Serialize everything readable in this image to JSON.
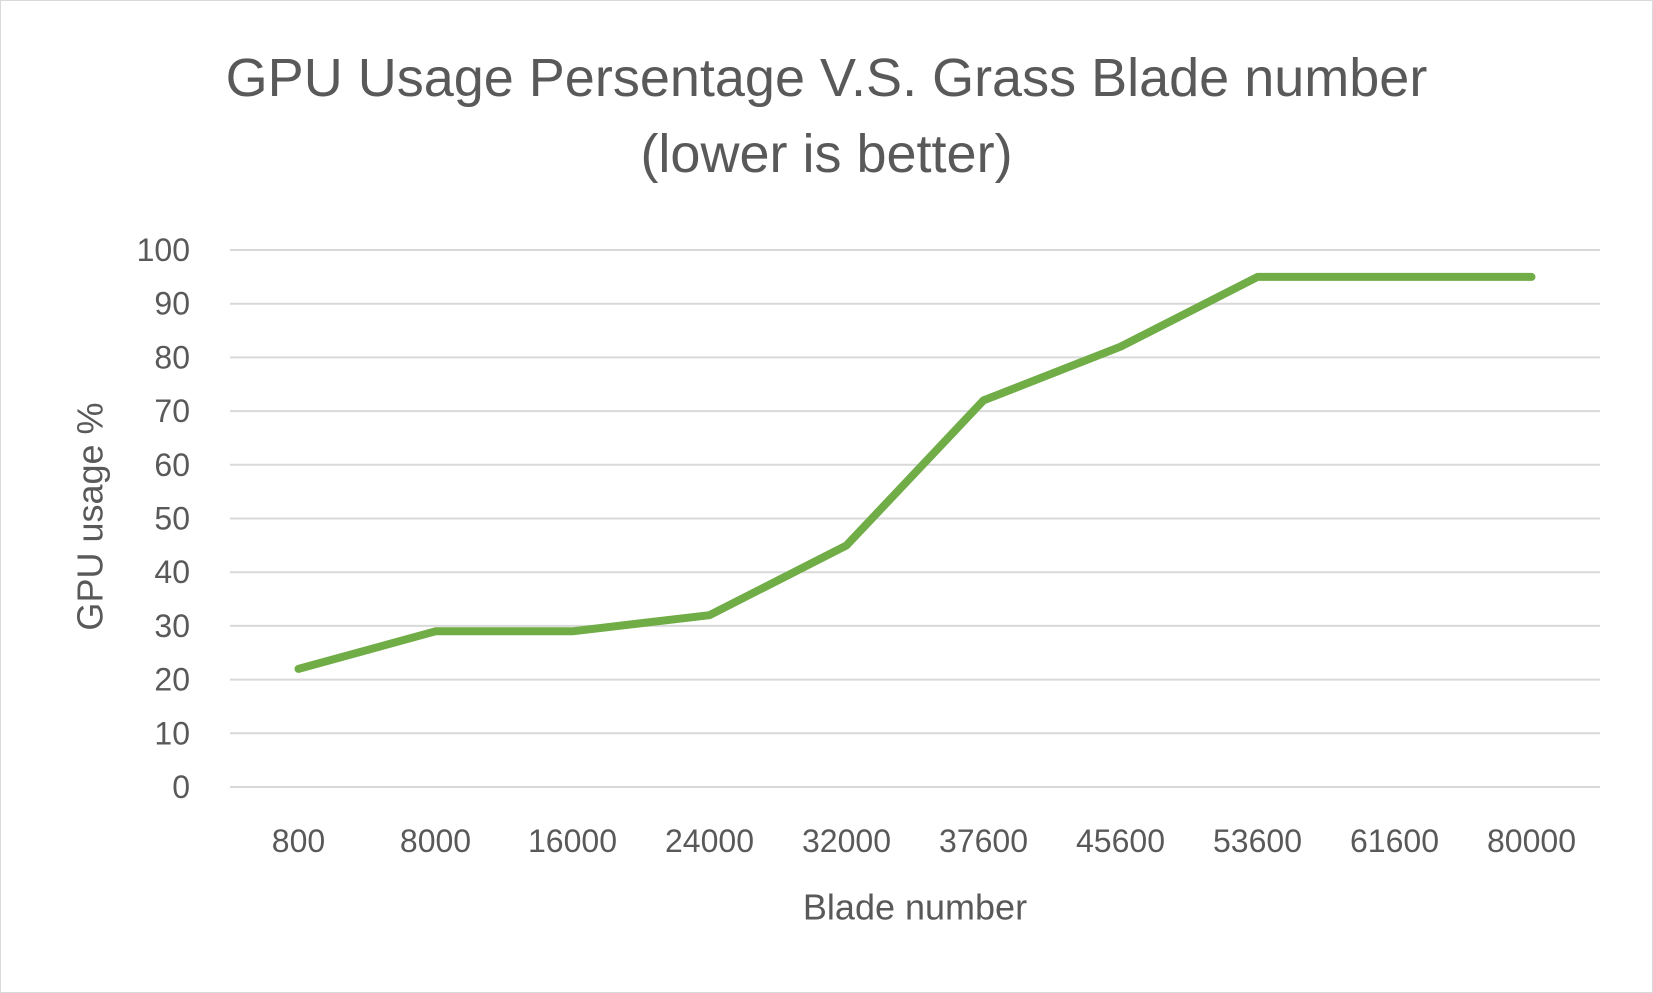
{
  "chart_data": {
    "type": "line",
    "title": "GPU Usage Persentage V.S. Grass Blade number",
    "subtitle": "(lower is better)",
    "xlabel": "Blade number",
    "ylabel": "GPU usage %",
    "categories": [
      "800",
      "8000",
      "16000",
      "24000",
      "32000",
      "37600",
      "45600",
      "53600",
      "61600",
      "80000"
    ],
    "series": [
      {
        "values": [
          22,
          29,
          29,
          32,
          45,
          72,
          82,
          95,
          95,
          95
        ],
        "color": "#70ad47"
      }
    ],
    "ylim": [
      0,
      100
    ],
    "yticks": [
      0,
      10,
      20,
      30,
      40,
      50,
      60,
      70,
      80,
      90,
      100
    ],
    "grid": true,
    "legend": "none",
    "gridline_color": "#d9d9d9",
    "text_color": "#595959"
  }
}
